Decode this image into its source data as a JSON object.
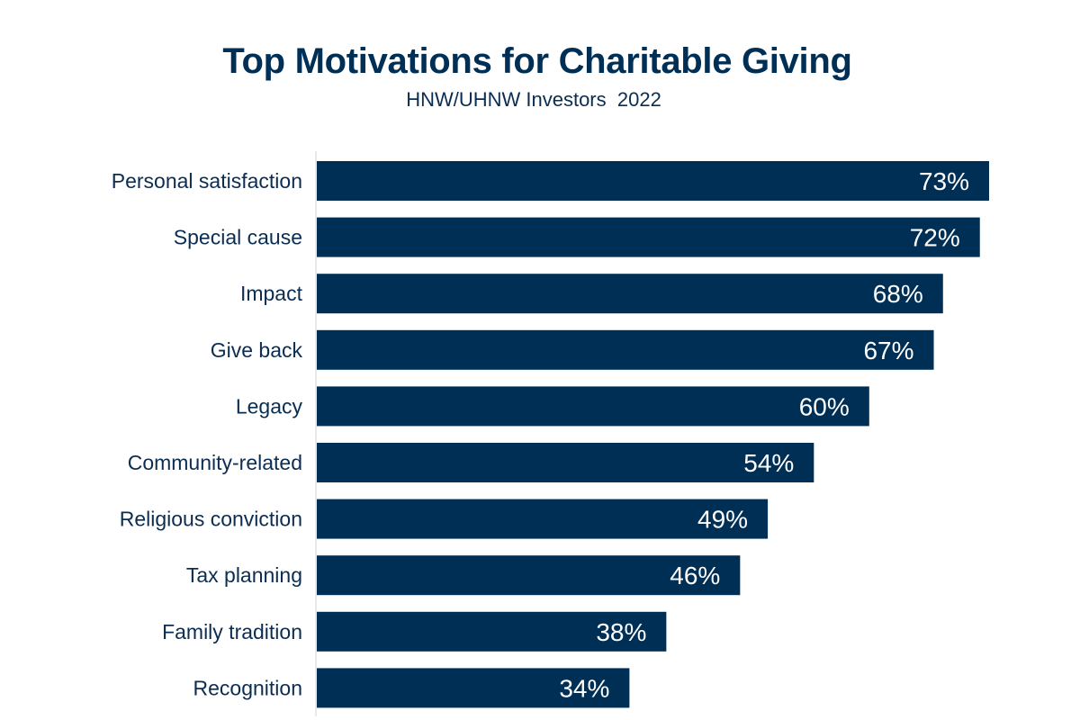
{
  "chart_data": {
    "type": "bar",
    "orientation": "horizontal",
    "title": "Top Motivations for Charitable Giving",
    "subtitle": "HNW/UHNW Investors  2022",
    "categories": [
      "Personal satisfaction",
      "Special cause",
      "Impact",
      "Give back",
      "Legacy",
      "Community-related",
      "Religious conviction",
      "Tax planning",
      "Family tradition",
      "Recognition"
    ],
    "values": [
      73,
      72,
      68,
      67,
      60,
      54,
      49,
      46,
      38,
      34
    ],
    "value_labels": [
      "73%",
      "72%",
      "68%",
      "67%",
      "60%",
      "54%",
      "49%",
      "46%",
      "38%",
      "34%"
    ],
    "unit": "%",
    "xlim": [
      0,
      73
    ],
    "grid": false,
    "legend": "none",
    "colors": {
      "bar": "#002f56",
      "axis": "#d0d0d0",
      "text": "#0b2d52"
    }
  }
}
